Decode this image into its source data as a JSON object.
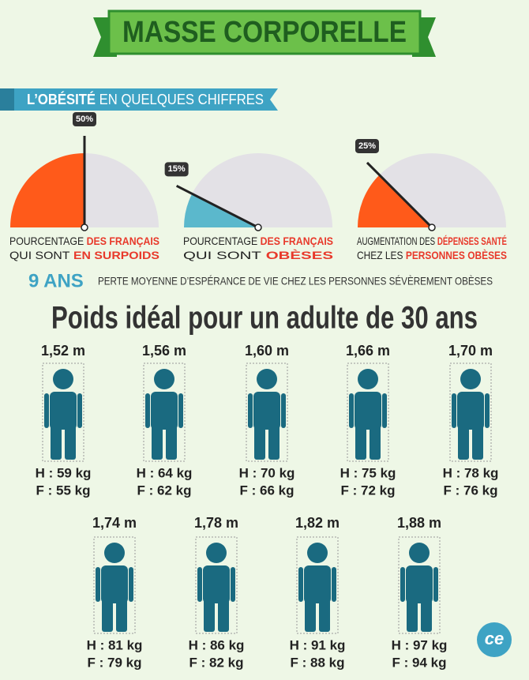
{
  "header": {
    "title": "MASSE CORPORELLE"
  },
  "subheader": {
    "bold": "L’OBÉSITÉ",
    "rest": "EN QUELQUES CHIFFRES"
  },
  "gauges": [
    {
      "value": 50,
      "label": "50%",
      "color": "#ff5a1a",
      "caption": [
        {
          "plain": "POURCENTAGE",
          "red": "DES FRANÇAIS"
        },
        {
          "plain": "QUI SONT",
          "red": "EN SURPOIDS"
        }
      ]
    },
    {
      "value": 15,
      "label": "15%",
      "color": "#5bb8cc",
      "caption": [
        {
          "plain": "POURCENTAGE",
          "red": "DES FRANÇAIS"
        },
        {
          "plain": "QUI SONT",
          "red": "OBÈSES"
        }
      ]
    },
    {
      "value": 25,
      "label": "25%",
      "color": "#ff5a1a",
      "caption": [
        {
          "plain": "AUGMENTATION DES",
          "red": "DÉPENSES SANTÉ"
        },
        {
          "plain": "CHEZ LES",
          "red": "PERSONNES OBÈSES"
        }
      ]
    }
  ],
  "stat": {
    "value": "9 ANS",
    "text": "PERTE MOYENNE D’ESPÉRANCE DE VIE CHEZ LES PERSONNES SÉVÈREMENT OBÈSES"
  },
  "weights": {
    "title": "Poids idéal pour un adulte de 30 ans",
    "people": [
      {
        "height": "1,52 m",
        "men": "H : 59 kg",
        "women": "F : 55 kg"
      },
      {
        "height": "1,56 m",
        "men": "H : 64 kg",
        "women": "F : 62 kg"
      },
      {
        "height": "1,60 m",
        "men": "H : 70 kg",
        "women": "F : 66 kg"
      },
      {
        "height": "1,66 m",
        "men": "H : 75 kg",
        "women": "F : 72 kg"
      },
      {
        "height": "1,70 m",
        "men": "H : 78 kg",
        "women": "F : 76 kg"
      },
      {
        "height": "1,74 m",
        "men": "H : 81 kg",
        "women": "F : 79 kg"
      },
      {
        "height": "1,78 m",
        "men": "H : 86 kg",
        "women": "F : 82 kg"
      },
      {
        "height": "1,82 m",
        "men": "H : 91 kg",
        "women": "F : 88 kg"
      },
      {
        "height": "1,88 m",
        "men": "H : 97 kg",
        "women": "F : 94 kg"
      }
    ]
  },
  "logo": "ce"
}
